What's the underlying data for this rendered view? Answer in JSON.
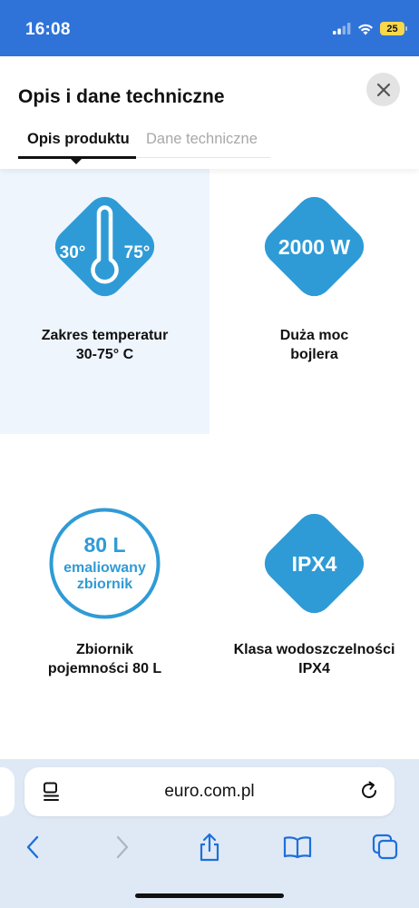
{
  "status_bar": {
    "time": "16:08",
    "battery": "25",
    "icons": [
      "signal-icon",
      "wifi-icon",
      "battery-icon"
    ]
  },
  "sheet": {
    "title": "Opis i dane techniczne",
    "tabs": [
      {
        "label": "Opis produktu",
        "active": true
      },
      {
        "label": "Dane techniczne",
        "active": false
      }
    ]
  },
  "features": [
    {
      "icon": "thermometer-icon",
      "icon_text_left": "30°",
      "icon_text_right": "75°",
      "label_line1": "Zakres temperatur",
      "label_line2": "30-75° C",
      "highlighted": true
    },
    {
      "icon": "power-badge-icon",
      "icon_text": "2000 W",
      "label_line1": "Duża moc",
      "label_line2": "bojlera"
    },
    {
      "icon": "tank-badge-icon",
      "icon_text_line1": "80 L",
      "icon_text_line2": "emaliowany",
      "icon_text_line3": "zbiornik",
      "label_line1": "Zbiornik",
      "label_line2": "pojemności 80 L"
    },
    {
      "icon": "ipx-badge-icon",
      "icon_text": "IPX4",
      "label_line1": "Klasa wodoszczelności",
      "label_line2": "IPX4"
    }
  ],
  "browser": {
    "url": "euro.com.pl",
    "nav": [
      "back-icon",
      "forward-icon",
      "share-icon",
      "bookmarks-icon",
      "tabs-icon"
    ]
  },
  "colors": {
    "status_bar": "#2f73d8",
    "icon_blue": "#2f9bd6",
    "highlight_bg": "#eef5fd",
    "browser_bar": "#dfe9f6",
    "nav_blue": "#1f6fd8"
  }
}
